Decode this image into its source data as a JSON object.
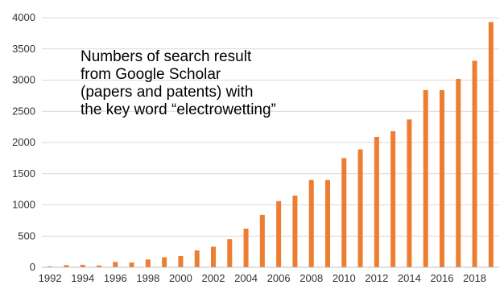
{
  "chart_data": {
    "type": "bar",
    "title": "",
    "xlabel": "",
    "ylabel": "",
    "ylim": [
      0,
      4000
    ],
    "yticks": [
      0,
      500,
      1000,
      1500,
      2000,
      2500,
      3000,
      3500,
      4000
    ],
    "grid": true,
    "legend": "none",
    "bar_color": "#ED7D31",
    "grid_color": "#D9D9D9",
    "categories": [
      "1992",
      "1993",
      "1994",
      "1995",
      "1996",
      "1997",
      "1998",
      "1999",
      "2000",
      "2001",
      "2002",
      "2003",
      "2004",
      "2005",
      "2006",
      "2007",
      "2008",
      "2009",
      "2010",
      "2011",
      "2012",
      "2013",
      "2014",
      "2015",
      "2016",
      "2017",
      "2018",
      "2019"
    ],
    "xtick_labels": [
      "1992",
      "1994",
      "1996",
      "1998",
      "2000",
      "2002",
      "2004",
      "2006",
      "2008",
      "2010",
      "2012",
      "2014",
      "2016",
      "2018"
    ],
    "values": [
      15,
      35,
      40,
      30,
      85,
      75,
      125,
      160,
      180,
      270,
      330,
      450,
      620,
      840,
      1060,
      1150,
      1400,
      1400,
      1750,
      1890,
      2090,
      2180,
      2370,
      2840,
      2840,
      3020,
      3310,
      3930
    ],
    "annotation": [
      "Numbers of search result",
      "from Google Scholar",
      "(papers and patents) with",
      "the key word “electrowetting”"
    ]
  }
}
